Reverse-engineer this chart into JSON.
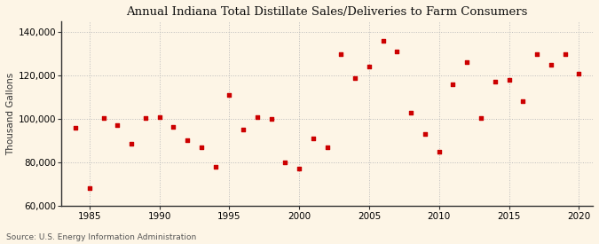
{
  "title": "Annual Indiana Total Distillate Sales/Deliveries to Farm Consumers",
  "ylabel": "Thousand Gallons",
  "source": "Source: U.S. Energy Information Administration",
  "background_color": "#fdf5e6",
  "plot_bg_color": "#fdf5e6",
  "marker_color": "#cc0000",
  "grid_color": "#bbbbbb",
  "spine_color": "#333333",
  "xlim": [
    1983,
    2021
  ],
  "ylim": [
    60000,
    145000
  ],
  "yticks": [
    60000,
    80000,
    100000,
    120000,
    140000
  ],
  "xticks": [
    1985,
    1990,
    1995,
    2000,
    2005,
    2010,
    2015,
    2020
  ],
  "years": [
    1984,
    1985,
    1986,
    1987,
    1988,
    1989,
    1990,
    1991,
    1992,
    1993,
    1994,
    1995,
    1996,
    1997,
    1998,
    1999,
    2000,
    2001,
    2002,
    2003,
    2004,
    2005,
    2006,
    2007,
    2008,
    2009,
    2010,
    2011,
    2012,
    2013,
    2014,
    2015,
    2016,
    2017,
    2018,
    2019,
    2020
  ],
  "values": [
    96000,
    68000,
    100500,
    97000,
    88500,
    100500,
    101000,
    96500,
    90000,
    87000,
    78000,
    111000,
    95000,
    101000,
    100000,
    80000,
    77000,
    91000,
    87000,
    130000,
    119000,
    124000,
    136000,
    131000,
    103000,
    93000,
    85000,
    116000,
    126000,
    100500,
    117000,
    118000,
    108000,
    130000,
    125000,
    130000,
    121000
  ],
  "title_fontsize": 9.5,
  "ylabel_fontsize": 7.5,
  "tick_fontsize": 7.5,
  "source_fontsize": 6.5
}
